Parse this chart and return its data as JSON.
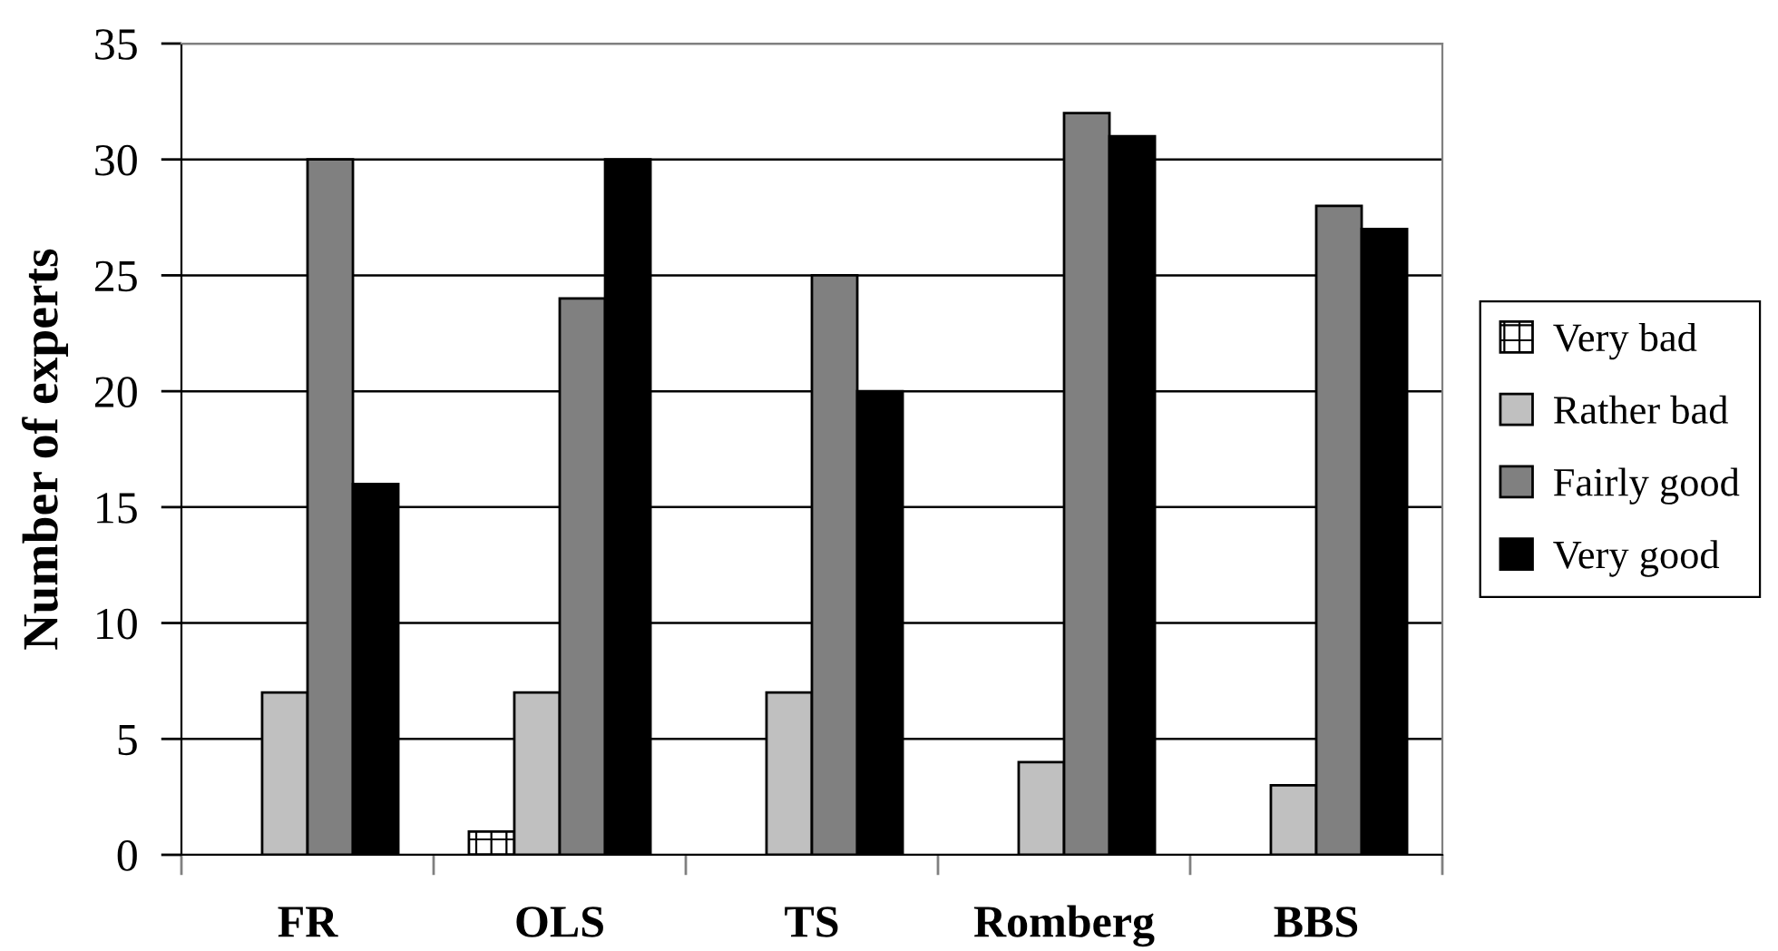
{
  "chart_data": {
    "type": "bar",
    "ylabel": "Number of experts",
    "categories": [
      "FR",
      "OLS",
      "TS",
      "Romberg",
      "BBS"
    ],
    "series": [
      {
        "name": "Very bad",
        "color": "#ffffff",
        "values": [
          0,
          1,
          0,
          0,
          0
        ]
      },
      {
        "name": "Rather bad",
        "color": "#c0c0c0",
        "values": [
          7,
          7,
          7,
          4,
          3
        ]
      },
      {
        "name": "Fairly good",
        "color": "#808080",
        "values": [
          30,
          24,
          25,
          32,
          28
        ]
      },
      {
        "name": "Very good",
        "color": "#000000",
        "values": [
          16,
          30,
          20,
          31,
          27
        ]
      }
    ],
    "ylim": [
      0,
      35
    ],
    "yticks": [
      0,
      5,
      10,
      15,
      20,
      25,
      30,
      35
    ],
    "grid": "y",
    "legend": "right"
  }
}
